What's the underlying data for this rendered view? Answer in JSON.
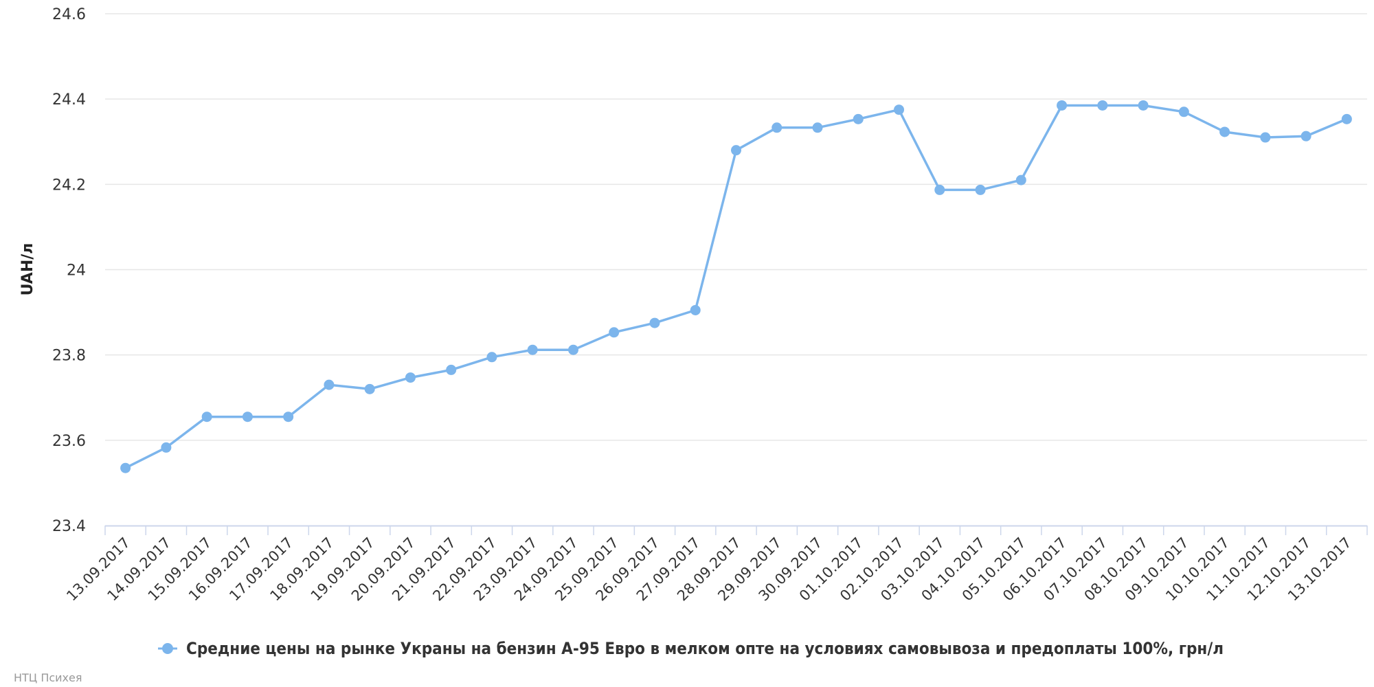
{
  "chart_data": {
    "type": "line",
    "ylabel": "UAH/л",
    "xlabel": "",
    "ylim": [
      23.4,
      24.6
    ],
    "y_ticks": [
      "23.4",
      "23.6",
      "23.8",
      "24",
      "24.2",
      "24.4",
      "24.6"
    ],
    "grid": true,
    "legend_position": "bottom-center",
    "categories": [
      "13.09.2017",
      "14.09.2017",
      "15.09.2017",
      "16.09.2017",
      "17.09.2017",
      "18.09.2017",
      "19.09.2017",
      "20.09.2017",
      "21.09.2017",
      "22.09.2017",
      "23.09.2017",
      "24.09.2017",
      "25.09.2017",
      "26.09.2017",
      "27.09.2017",
      "28.09.2017",
      "29.09.2017",
      "30.09.2017",
      "01.10.2017",
      "02.10.2017",
      "03.10.2017",
      "04.10.2017",
      "05.10.2017",
      "06.10.2017",
      "07.10.2017",
      "08.10.2017",
      "09.10.2017",
      "10.10.2017",
      "11.10.2017",
      "12.10.2017",
      "13.10.2017"
    ],
    "series": [
      {
        "name": "Средние цены на рынке Украны на бензин А-95 Евро в мелком опте на условиях самовывоза и предоплаты 100%, грн/л",
        "color": "#7cb5ec",
        "values": [
          23.535,
          23.583,
          23.655,
          23.655,
          23.655,
          23.73,
          23.72,
          23.747,
          23.765,
          23.795,
          23.812,
          23.812,
          23.853,
          23.875,
          23.905,
          24.28,
          24.333,
          24.333,
          24.353,
          24.375,
          24.187,
          24.187,
          24.21,
          24.385,
          24.385,
          24.385,
          24.37,
          24.323,
          24.31,
          24.313,
          24.353
        ]
      }
    ]
  },
  "credits": "НТЦ Психея",
  "colors": {
    "series": "#7cb5ec",
    "grid": "#e6e6e6",
    "axis": "#ccd6eb"
  }
}
